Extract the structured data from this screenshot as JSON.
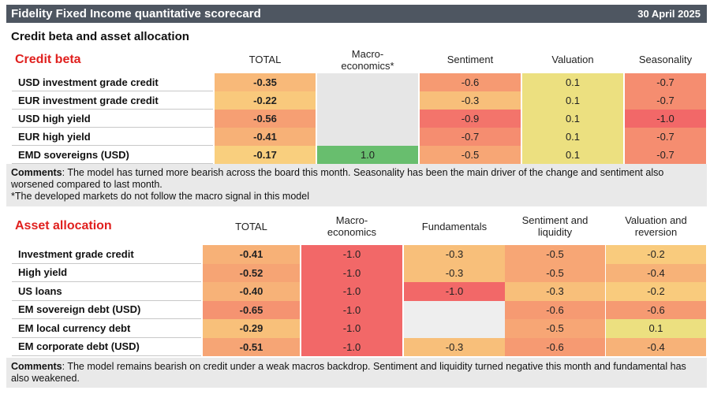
{
  "header": {
    "title": "Fidelity Fixed Income quantitative scorecard",
    "date": "30 April 2025"
  },
  "section_title": "Credit beta and asset allocation",
  "credit_beta": {
    "title": "Credit beta",
    "columns": [
      "TOTAL",
      "Macro-\neconomics*",
      "Sentiment",
      "Valuation",
      "Seasonality"
    ],
    "rows": [
      {
        "label": "USD investment grade credit",
        "cells": [
          "-0.35",
          null,
          "-0.6",
          "0.1",
          "-0.7"
        ]
      },
      {
        "label": "EUR investment grade credit",
        "cells": [
          "-0.22",
          null,
          "-0.3",
          "0.1",
          "-0.7"
        ]
      },
      {
        "label": "USD high yield",
        "cells": [
          "-0.56",
          null,
          "-0.9",
          "0.1",
          "-1.0"
        ]
      },
      {
        "label": "EUR high yield",
        "cells": [
          "-0.41",
          null,
          "-0.7",
          "0.1",
          "-0.7"
        ]
      },
      {
        "label": "EMD sovereigns (USD)",
        "cells": [
          "-0.17",
          "1.0",
          "-0.5",
          "0.1",
          "-0.7"
        ]
      }
    ]
  },
  "credit_beta_comments": {
    "label": "Comments",
    "text": ": The model has turned more bearish across the board this month. Seasonality has been the main driver of the change and sentiment also worsened compared to last month.",
    "note": "*The developed markets do not follow the macro signal in this model"
  },
  "asset_allocation": {
    "title": "Asset allocation",
    "columns": [
      "TOTAL",
      "Macro-\neconomics",
      "Fundamentals",
      "Sentiment and\nliquidity",
      "Valuation and\nreversion"
    ],
    "rows": [
      {
        "label": "Investment grade credit",
        "cells": [
          "-0.41",
          "-1.0",
          "-0.3",
          "-0.5",
          "-0.2"
        ]
      },
      {
        "label": "High yield",
        "cells": [
          "-0.52",
          "-1.0",
          "-0.3",
          "-0.5",
          "-0.4"
        ]
      },
      {
        "label": "US loans",
        "cells": [
          "-0.40",
          "-1.0",
          "-1.0",
          "-0.3",
          "-0.2"
        ]
      },
      {
        "label": "EM sovereign debt (USD)",
        "cells": [
          "-0.65",
          "-1.0",
          null,
          "-0.6",
          "-0.6"
        ]
      },
      {
        "label": "EM local currency debt",
        "cells": [
          "-0.29",
          "-1.0",
          null,
          "-0.5",
          "0.1"
        ]
      },
      {
        "label": "EM corporate debt (USD)",
        "cells": [
          "-0.51",
          "-1.0",
          "-0.3",
          "-0.6",
          "-0.4"
        ]
      }
    ]
  },
  "asset_allocation_comments": {
    "label": "Comments",
    "text": ": The model remains bearish on credit under a weak macros backdrop. Sentiment and liquidity turned negative this month and fundamental has also weakened."
  }
}
